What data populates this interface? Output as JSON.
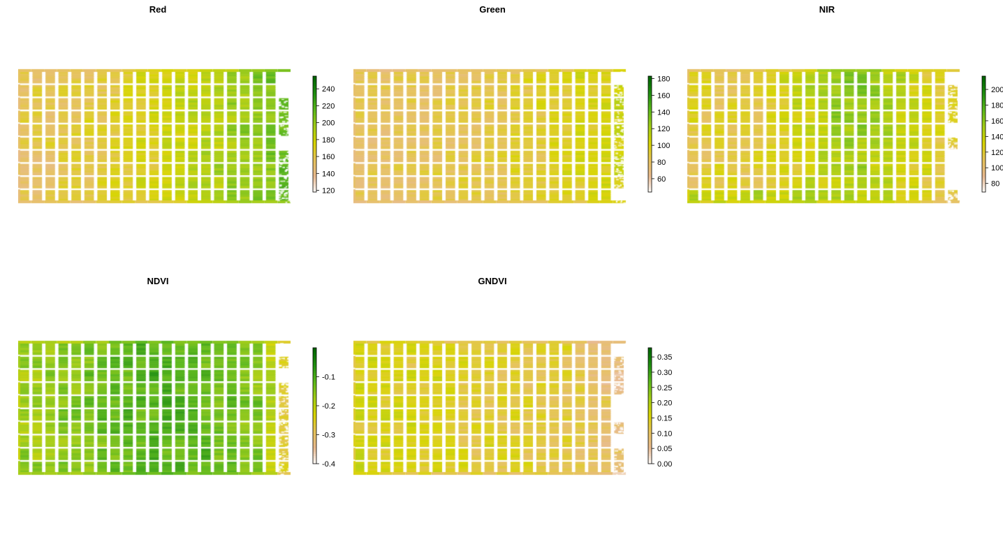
{
  "chart_data": [
    {
      "type": "heatmap",
      "title": "Red",
      "ticks": [
        "240",
        "220",
        "200",
        "180",
        "160",
        "140",
        "120"
      ],
      "tick_values": [
        240,
        220,
        200,
        180,
        160,
        140,
        120
      ],
      "range": [
        118,
        255
      ]
    },
    {
      "type": "heatmap",
      "title": "Green",
      "ticks": [
        "180",
        "160",
        "140",
        "120",
        "100",
        "80",
        "60"
      ],
      "tick_values": [
        180,
        160,
        140,
        120,
        100,
        80,
        60
      ],
      "range": [
        44,
        183
      ]
    },
    {
      "type": "heatmap",
      "title": "NIR",
      "ticks": [
        "200",
        "180",
        "160",
        "140",
        "120",
        "100",
        "80"
      ],
      "tick_values": [
        200,
        180,
        160,
        140,
        120,
        100,
        80
      ],
      "range": [
        69,
        217
      ]
    },
    {
      "type": "heatmap",
      "title": "NDVI",
      "ticks": [
        "-0.1",
        "-0.2",
        "-0.3",
        "-0.4"
      ],
      "tick_values": [
        -0.1,
        -0.2,
        -0.3,
        -0.4
      ],
      "range": [
        -0.4,
        0.0
      ]
    },
    {
      "type": "heatmap",
      "title": "GNDVI",
      "ticks": [
        "0.35",
        "0.30",
        "0.25",
        "0.20",
        "0.15",
        "0.10",
        "0.05",
        "0.00"
      ],
      "tick_values": [
        0.35,
        0.3,
        0.25,
        0.2,
        0.15,
        0.1,
        0.05,
        0.0
      ],
      "range": [
        0.0,
        0.38
      ]
    }
  ],
  "colors": {
    "palette": [
      "#ffffff",
      "#e8b98f",
      "#e6c25a",
      "#d8d400",
      "#a3cd16",
      "#5cb81a",
      "#1f8f10",
      "#006400"
    ]
  }
}
